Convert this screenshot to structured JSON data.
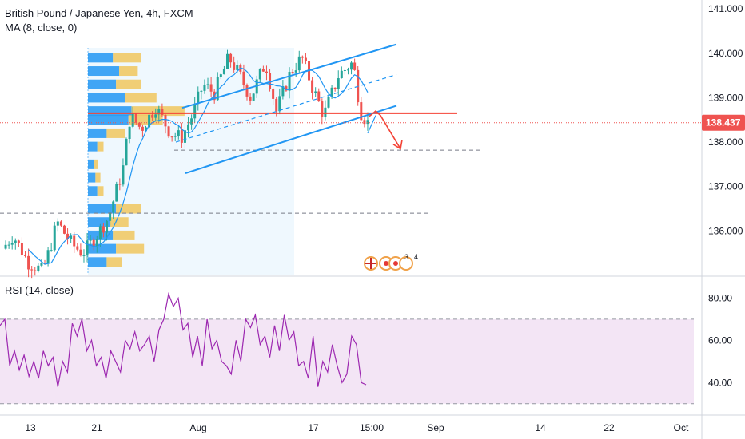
{
  "header": {
    "title": "British Pound / Japanese Yen, 4h, FXCM",
    "ma_legend": "MA (8, close, 0)",
    "rsi_legend": "RSI (14, close)"
  },
  "colors": {
    "up": "#26a69a",
    "down": "#ef5350",
    "channel": "#2196f3",
    "support": "#f44336",
    "rsi_line": "#9c27b0",
    "rsi_band": "#f3e5f5",
    "volume_profile_up": "#2196f3",
    "volume_profile_down": "#f0c75e"
  },
  "chart_data": [
    {
      "type": "candlestick",
      "symbol": "GBPJPY",
      "timeframe": "4h",
      "y_axis": {
        "range": [
          135.0,
          141.2
        ],
        "ticks": [
          "141.000",
          "140.000",
          "139.000",
          "138.000",
          "137.000",
          "136.000"
        ]
      },
      "last_price": "138.437",
      "x_axis_ticks": [
        "13",
        "21",
        "Aug",
        "17",
        "15:00",
        "Sep",
        "14",
        "22",
        "Oct"
      ],
      "ma_series": "MA (8, close, 0)",
      "price_path": [
        {
          "t": 0.0,
          "p": 135.6
        },
        {
          "t": 0.03,
          "p": 135.9
        },
        {
          "t": 0.07,
          "p": 135.3
        },
        {
          "t": 0.11,
          "p": 135.1
        },
        {
          "t": 0.13,
          "p": 135.6
        },
        {
          "t": 0.15,
          "p": 136.2
        },
        {
          "t": 0.19,
          "p": 135.7
        },
        {
          "t": 0.22,
          "p": 135.5
        },
        {
          "t": 0.25,
          "p": 135.8
        },
        {
          "t": 0.29,
          "p": 136.3
        },
        {
          "t": 0.33,
          "p": 137.4
        },
        {
          "t": 0.35,
          "p": 138.6
        },
        {
          "t": 0.38,
          "p": 138.3
        },
        {
          "t": 0.42,
          "p": 138.8
        },
        {
          "t": 0.46,
          "p": 138.2
        },
        {
          "t": 0.49,
          "p": 138.1
        },
        {
          "t": 0.52,
          "p": 138.6
        },
        {
          "t": 0.55,
          "p": 139.3
        },
        {
          "t": 0.58,
          "p": 139.1
        },
        {
          "t": 0.62,
          "p": 139.9
        },
        {
          "t": 0.65,
          "p": 139.5
        },
        {
          "t": 0.68,
          "p": 139.0
        },
        {
          "t": 0.72,
          "p": 139.8
        },
        {
          "t": 0.75,
          "p": 138.7
        },
        {
          "t": 0.79,
          "p": 139.6
        },
        {
          "t": 0.82,
          "p": 139.9
        },
        {
          "t": 0.85,
          "p": 139.2
        },
        {
          "t": 0.88,
          "p": 138.6
        },
        {
          "t": 0.92,
          "p": 139.5
        },
        {
          "t": 0.96,
          "p": 139.8
        },
        {
          "t": 0.98,
          "p": 138.7
        },
        {
          "t": 1.0,
          "p": 138.44
        }
      ],
      "horizontal_levels": [
        138.65,
        137.82,
        136.4
      ],
      "volume_profile": [
        {
          "price": 139.9,
          "up": 0.4,
          "down": 0.45
        },
        {
          "price": 139.6,
          "up": 0.5,
          "down": 0.3
        },
        {
          "price": 139.3,
          "up": 0.45,
          "down": 0.4
        },
        {
          "price": 139.0,
          "up": 0.6,
          "down": 0.5
        },
        {
          "price": 138.7,
          "up": 0.7,
          "down": 0.85
        },
        {
          "price": 138.5,
          "up": 0.65,
          "down": 0.55
        },
        {
          "price": 138.2,
          "up": 0.3,
          "down": 0.3
        },
        {
          "price": 137.9,
          "up": 0.15,
          "down": 0.1
        },
        {
          "price": 137.5,
          "up": 0.1,
          "down": 0.06
        },
        {
          "price": 137.2,
          "up": 0.12,
          "down": 0.08
        },
        {
          "price": 136.9,
          "up": 0.15,
          "down": 0.1
        },
        {
          "price": 136.5,
          "up": 0.45,
          "down": 0.4
        },
        {
          "price": 136.2,
          "up": 0.35,
          "down": 0.3
        },
        {
          "price": 135.9,
          "up": 0.4,
          "down": 0.35
        },
        {
          "price": 135.6,
          "up": 0.45,
          "down": 0.45
        },
        {
          "price": 135.3,
          "up": 0.3,
          "down": 0.25
        }
      ]
    },
    {
      "type": "line",
      "name": "RSI (14, close)",
      "y_axis": {
        "range": [
          25,
          90
        ],
        "ticks": [
          "80.00",
          "60.00",
          "40.00"
        ]
      },
      "bands": [
        30,
        70
      ],
      "values": [
        67,
        70,
        48,
        55,
        46,
        53,
        43,
        50,
        42,
        55,
        48,
        52,
        38,
        50,
        45,
        68,
        62,
        70,
        55,
        60,
        48,
        52,
        42,
        55,
        50,
        45,
        60,
        56,
        64,
        55,
        58,
        62,
        50,
        65,
        70,
        82,
        76,
        80,
        65,
        68,
        52,
        62,
        48,
        70,
        56,
        60,
        50,
        48,
        44,
        60,
        50,
        70,
        66,
        72,
        58,
        62,
        52,
        67,
        55,
        72,
        60,
        64,
        48,
        50,
        42,
        62,
        38,
        50,
        45,
        58,
        48,
        40,
        44,
        62,
        58,
        40,
        39
      ]
    }
  ]
}
